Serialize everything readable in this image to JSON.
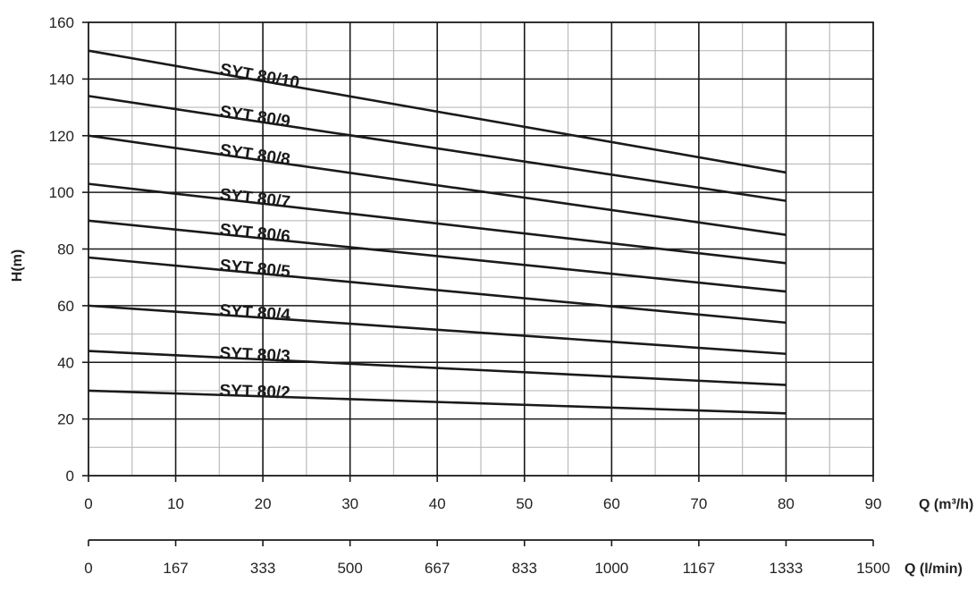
{
  "chart_data": {
    "type": "line",
    "ylabel": "H(m)",
    "xlabel": "Q (m³/h)",
    "x2label": "Q (l/min)",
    "ylim": [
      0,
      160
    ],
    "xlim": [
      0,
      90
    ],
    "y_ticks": [
      "0",
      "20",
      "40",
      "60",
      "80",
      "100",
      "120",
      "140",
      "160"
    ],
    "x_ticks": [
      "0",
      "10",
      "20",
      "30",
      "40",
      "50",
      "60",
      "70",
      "80",
      "90"
    ],
    "x2_ticks": [
      "0",
      "167",
      "333",
      "500",
      "667",
      "833",
      "1000",
      "1167",
      "1333",
      "1500"
    ],
    "grid": true,
    "series": [
      {
        "name": "SYT 80/10",
        "x": [
          0,
          80
        ],
        "y": [
          150,
          107
        ]
      },
      {
        "name": "SYT 80/9",
        "x": [
          0,
          80
        ],
        "y": [
          134,
          97
        ]
      },
      {
        "name": "SYT 80/8",
        "x": [
          0,
          80
        ],
        "y": [
          120,
          85
        ]
      },
      {
        "name": "SYT 80/7",
        "x": [
          0,
          80
        ],
        "y": [
          103,
          75
        ]
      },
      {
        "name": "SYT 80/6",
        "x": [
          0,
          80
        ],
        "y": [
          90,
          65
        ]
      },
      {
        "name": "SYT 80/5",
        "x": [
          0,
          80
        ],
        "y": [
          77,
          54
        ]
      },
      {
        "name": "SYT 80/4",
        "x": [
          0,
          80
        ],
        "y": [
          60,
          43
        ]
      },
      {
        "name": "SYT 80/3",
        "x": [
          0,
          80
        ],
        "y": [
          44,
          32
        ]
      },
      {
        "name": "SYT 80/2",
        "x": [
          0,
          80
        ],
        "y": [
          30,
          22
        ]
      }
    ],
    "colors": {
      "line": "#1a1a1a",
      "grid_major": "#1a1a1a",
      "grid_minor": "#bbbbbb"
    }
  }
}
